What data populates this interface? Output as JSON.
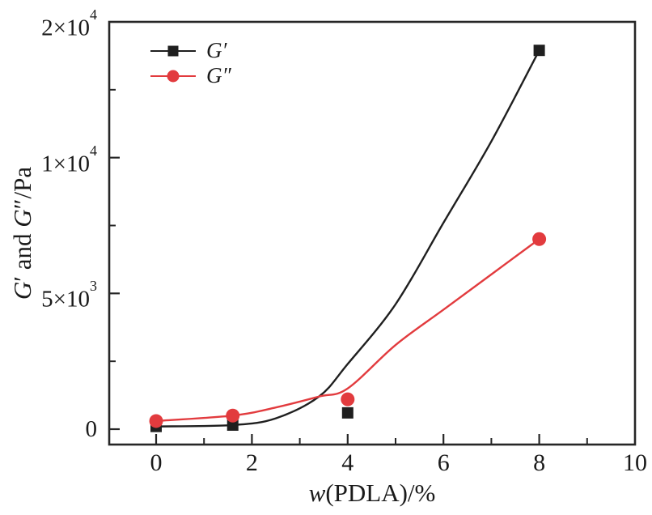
{
  "figure": {
    "background": "#ffffff",
    "text_color": "#1a1a1a",
    "frame_color": "#262626"
  },
  "chart_data": {
    "type": "line",
    "title": "",
    "xlabel": "w(PDLA)/%",
    "ylabel": "G′ and G″/Pa",
    "xlabel_parts": {
      "italic": "w",
      "rest": "(PDLA)/%"
    },
    "ylabel_parts": {
      "g1": "G",
      "r1": "′ and ",
      "g2": "G",
      "r2": "″/Pa"
    },
    "xlim": [
      -1,
      10
    ],
    "ylim": [
      -500,
      20000
    ],
    "grid": false,
    "legend_position": "upper-left-inside",
    "axis_note": "y major ticks 0, 5x10^3, 1x10^4, 2x10^4 are evenly spaced; ticks point inward; full box frame",
    "x_major_ticks": [
      {
        "value": 0,
        "label": "0"
      },
      {
        "value": 2,
        "label": "2"
      },
      {
        "value": 4,
        "label": "4"
      },
      {
        "value": 6,
        "label": "6"
      },
      {
        "value": 8,
        "label": "8"
      },
      {
        "value": 10,
        "label": "10"
      }
    ],
    "x_minor_ticks": [
      1,
      3,
      5,
      7,
      9
    ],
    "y_major_ticks": [
      {
        "value": 0,
        "main": "0",
        "sup": ""
      },
      {
        "value": 5000,
        "main": "5×10",
        "sup": "3"
      },
      {
        "value": 10000,
        "main": "1×10",
        "sup": "4"
      },
      {
        "value": 20000,
        "main": "2×10",
        "sup": "4"
      }
    ],
    "y_minor_ticks": [
      2500,
      7500,
      15000
    ],
    "series": [
      {
        "name": "G′",
        "color": "#1f1f1f",
        "marker": "square",
        "points": [
          [
            0,
            100
          ],
          [
            1.6,
            150
          ],
          [
            4,
            600
          ],
          [
            8,
            17900
          ]
        ],
        "fit_curve": [
          [
            0,
            100
          ],
          [
            1.6,
            150
          ],
          [
            2.5,
            400
          ],
          [
            3.4,
            1200
          ],
          [
            4,
            2400
          ],
          [
            5,
            4600
          ],
          [
            6,
            7600
          ],
          [
            7,
            11200
          ],
          [
            8,
            17900
          ]
        ]
      },
      {
        "name": "G″",
        "color": "#e23b3e",
        "marker": "circle",
        "points": [
          [
            0,
            300
          ],
          [
            1.6,
            500
          ],
          [
            4,
            1100
          ],
          [
            8,
            7000
          ]
        ],
        "fit_curve": [
          [
            0,
            300
          ],
          [
            1.6,
            500
          ],
          [
            2.5,
            800
          ],
          [
            3.4,
            1200
          ],
          [
            4,
            1500
          ],
          [
            5,
            3100
          ],
          [
            6,
            4400
          ],
          [
            7,
            5700
          ],
          [
            8,
            7000
          ]
        ]
      }
    ]
  }
}
